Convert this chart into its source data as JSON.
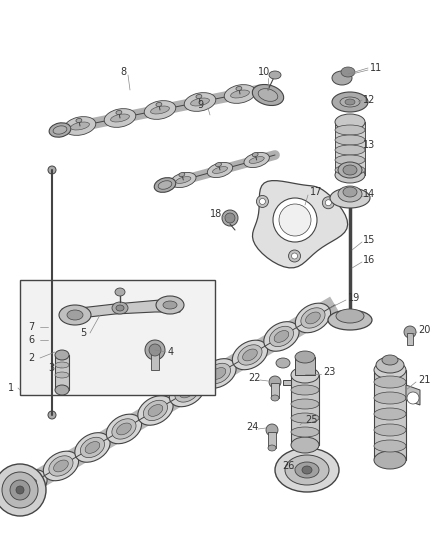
{
  "background_color": "#ffffff",
  "line_color": "#444444",
  "label_color": "#333333",
  "label_fontsize": 7.0,
  "leader_color": "#888888",
  "part_fill": "#cccccc",
  "part_fill_dark": "#aaaaaa",
  "part_fill_light": "#e8e8e8",
  "shaft_color": "#b0b0b0",
  "fig_width": 4.38,
  "fig_height": 5.33,
  "dpi": 100
}
